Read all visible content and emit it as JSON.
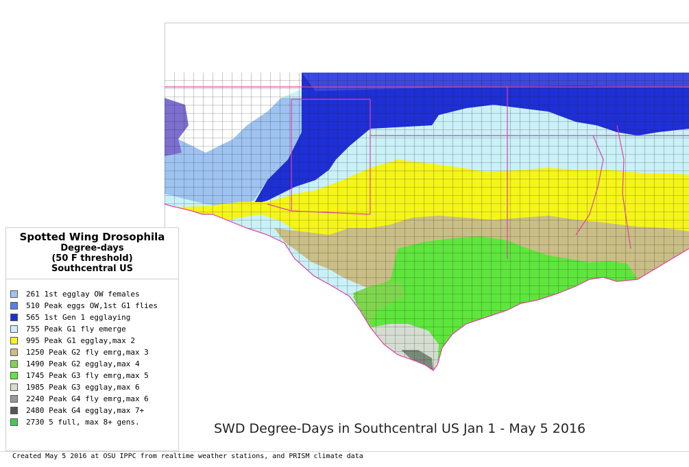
{
  "legend": {
    "title": "Spotted Wing Drosophila",
    "subtitle1": "Degree-days",
    "subtitle2": "(50 F threshold)",
    "subtitle3": "Southcentral US",
    "items": [
      {
        "value": "261",
        "label": "261 1st egglay OW females",
        "color": "#9ec3f0"
      },
      {
        "value": "510",
        "label": "510 Peak eggs OW,1st G1 flies",
        "color": "#5b7fe6"
      },
      {
        "value": "565",
        "label": "565 1st Gen 1 egglaying",
        "color": "#1e2fd6"
      },
      {
        "value": "755",
        "label": "755 Peak G1 fly emerge",
        "color": "#c9f1f7"
      },
      {
        "value": "995",
        "label": "995 Peak G1 egglay,max 2",
        "color": "#f5f51a"
      },
      {
        "value": "1250",
        "label": "1250 Peak G2 fly emrg,max 3",
        "color": "#c9be86"
      },
      {
        "value": "1490",
        "label": "1490 Peak G2 egglay,max 4",
        "color": "#7fd64e"
      },
      {
        "value": "1745",
        "label": "1745 Peak G3 fly emrg,max 5",
        "color": "#5ee63c"
      },
      {
        "value": "1985",
        "label": "1985 Peak G3 egglay,max 6",
        "color": "#d4ddd0"
      },
      {
        "value": "2240",
        "label": "2240 Peak G4 fly emrg,max 6",
        "color": "#999999"
      },
      {
        "value": "2480",
        "label": "2480 Peak G4 egglay,max 7+",
        "color": "#555555"
      },
      {
        "value": "2730",
        "label": "2730 5 full, max 8+ gens.",
        "color": "#45c95a"
      }
    ]
  },
  "map_title": "SWD Degree-Days in Southcentral US Jan 1 - May 5 2016",
  "footer": "Created May 5 2016 at OSU IPPC from  realtime weather stations, and PRISM climate data",
  "colors": {
    "state_border": "#e23ea8",
    "county_border": "#1a1a1a",
    "coast": "#e23ea8"
  }
}
